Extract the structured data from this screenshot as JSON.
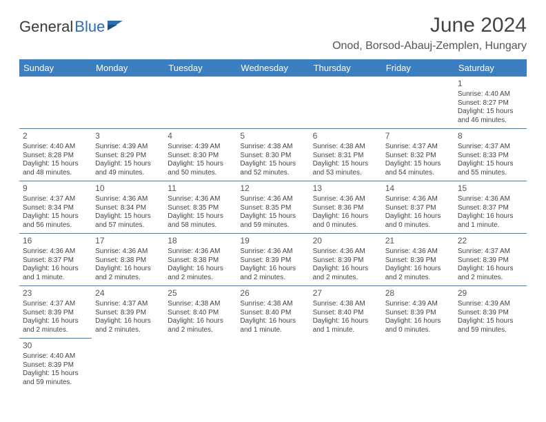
{
  "logo": {
    "part1": "General",
    "part2": "Blue"
  },
  "title": "June 2024",
  "location": "Onod, Borsod-Abauj-Zemplen, Hungary",
  "colors": {
    "header_bg": "#3c7fc1",
    "header_text": "#ffffff",
    "cell_border": "#3c7fc1",
    "logo_blue": "#2d6db3",
    "text": "#444444"
  },
  "typography": {
    "title_fontsize": 30,
    "location_fontsize": 16,
    "header_fontsize": 13,
    "daynum_fontsize": 12,
    "body_fontsize": 10
  },
  "weekdays": [
    "Sunday",
    "Monday",
    "Tuesday",
    "Wednesday",
    "Thursday",
    "Friday",
    "Saturday"
  ],
  "weeks": [
    [
      null,
      null,
      null,
      null,
      null,
      null,
      {
        "day": "1",
        "sunrise": "Sunrise: 4:40 AM",
        "sunset": "Sunset: 8:27 PM",
        "daylight1": "Daylight: 15 hours",
        "daylight2": "and 46 minutes."
      }
    ],
    [
      {
        "day": "2",
        "sunrise": "Sunrise: 4:40 AM",
        "sunset": "Sunset: 8:28 PM",
        "daylight1": "Daylight: 15 hours",
        "daylight2": "and 48 minutes."
      },
      {
        "day": "3",
        "sunrise": "Sunrise: 4:39 AM",
        "sunset": "Sunset: 8:29 PM",
        "daylight1": "Daylight: 15 hours",
        "daylight2": "and 49 minutes."
      },
      {
        "day": "4",
        "sunrise": "Sunrise: 4:39 AM",
        "sunset": "Sunset: 8:30 PM",
        "daylight1": "Daylight: 15 hours",
        "daylight2": "and 50 minutes."
      },
      {
        "day": "5",
        "sunrise": "Sunrise: 4:38 AM",
        "sunset": "Sunset: 8:30 PM",
        "daylight1": "Daylight: 15 hours",
        "daylight2": "and 52 minutes."
      },
      {
        "day": "6",
        "sunrise": "Sunrise: 4:38 AM",
        "sunset": "Sunset: 8:31 PM",
        "daylight1": "Daylight: 15 hours",
        "daylight2": "and 53 minutes."
      },
      {
        "day": "7",
        "sunrise": "Sunrise: 4:37 AM",
        "sunset": "Sunset: 8:32 PM",
        "daylight1": "Daylight: 15 hours",
        "daylight2": "and 54 minutes."
      },
      {
        "day": "8",
        "sunrise": "Sunrise: 4:37 AM",
        "sunset": "Sunset: 8:33 PM",
        "daylight1": "Daylight: 15 hours",
        "daylight2": "and 55 minutes."
      }
    ],
    [
      {
        "day": "9",
        "sunrise": "Sunrise: 4:37 AM",
        "sunset": "Sunset: 8:34 PM",
        "daylight1": "Daylight: 15 hours",
        "daylight2": "and 56 minutes."
      },
      {
        "day": "10",
        "sunrise": "Sunrise: 4:36 AM",
        "sunset": "Sunset: 8:34 PM",
        "daylight1": "Daylight: 15 hours",
        "daylight2": "and 57 minutes."
      },
      {
        "day": "11",
        "sunrise": "Sunrise: 4:36 AM",
        "sunset": "Sunset: 8:35 PM",
        "daylight1": "Daylight: 15 hours",
        "daylight2": "and 58 minutes."
      },
      {
        "day": "12",
        "sunrise": "Sunrise: 4:36 AM",
        "sunset": "Sunset: 8:35 PM",
        "daylight1": "Daylight: 15 hours",
        "daylight2": "and 59 minutes."
      },
      {
        "day": "13",
        "sunrise": "Sunrise: 4:36 AM",
        "sunset": "Sunset: 8:36 PM",
        "daylight1": "Daylight: 16 hours",
        "daylight2": "and 0 minutes."
      },
      {
        "day": "14",
        "sunrise": "Sunrise: 4:36 AM",
        "sunset": "Sunset: 8:37 PM",
        "daylight1": "Daylight: 16 hours",
        "daylight2": "and 0 minutes."
      },
      {
        "day": "15",
        "sunrise": "Sunrise: 4:36 AM",
        "sunset": "Sunset: 8:37 PM",
        "daylight1": "Daylight: 16 hours",
        "daylight2": "and 1 minute."
      }
    ],
    [
      {
        "day": "16",
        "sunrise": "Sunrise: 4:36 AM",
        "sunset": "Sunset: 8:37 PM",
        "daylight1": "Daylight: 16 hours",
        "daylight2": "and 1 minute."
      },
      {
        "day": "17",
        "sunrise": "Sunrise: 4:36 AM",
        "sunset": "Sunset: 8:38 PM",
        "daylight1": "Daylight: 16 hours",
        "daylight2": "and 2 minutes."
      },
      {
        "day": "18",
        "sunrise": "Sunrise: 4:36 AM",
        "sunset": "Sunset: 8:38 PM",
        "daylight1": "Daylight: 16 hours",
        "daylight2": "and 2 minutes."
      },
      {
        "day": "19",
        "sunrise": "Sunrise: 4:36 AM",
        "sunset": "Sunset: 8:39 PM",
        "daylight1": "Daylight: 16 hours",
        "daylight2": "and 2 minutes."
      },
      {
        "day": "20",
        "sunrise": "Sunrise: 4:36 AM",
        "sunset": "Sunset: 8:39 PM",
        "daylight1": "Daylight: 16 hours",
        "daylight2": "and 2 minutes."
      },
      {
        "day": "21",
        "sunrise": "Sunrise: 4:36 AM",
        "sunset": "Sunset: 8:39 PM",
        "daylight1": "Daylight: 16 hours",
        "daylight2": "and 2 minutes."
      },
      {
        "day": "22",
        "sunrise": "Sunrise: 4:37 AM",
        "sunset": "Sunset: 8:39 PM",
        "daylight1": "Daylight: 16 hours",
        "daylight2": "and 2 minutes."
      }
    ],
    [
      {
        "day": "23",
        "sunrise": "Sunrise: 4:37 AM",
        "sunset": "Sunset: 8:39 PM",
        "daylight1": "Daylight: 16 hours",
        "daylight2": "and 2 minutes."
      },
      {
        "day": "24",
        "sunrise": "Sunrise: 4:37 AM",
        "sunset": "Sunset: 8:39 PM",
        "daylight1": "Daylight: 16 hours",
        "daylight2": "and 2 minutes."
      },
      {
        "day": "25",
        "sunrise": "Sunrise: 4:38 AM",
        "sunset": "Sunset: 8:40 PM",
        "daylight1": "Daylight: 16 hours",
        "daylight2": "and 2 minutes."
      },
      {
        "day": "26",
        "sunrise": "Sunrise: 4:38 AM",
        "sunset": "Sunset: 8:40 PM",
        "daylight1": "Daylight: 16 hours",
        "daylight2": "and 1 minute."
      },
      {
        "day": "27",
        "sunrise": "Sunrise: 4:38 AM",
        "sunset": "Sunset: 8:40 PM",
        "daylight1": "Daylight: 16 hours",
        "daylight2": "and 1 minute."
      },
      {
        "day": "28",
        "sunrise": "Sunrise: 4:39 AM",
        "sunset": "Sunset: 8:39 PM",
        "daylight1": "Daylight: 16 hours",
        "daylight2": "and 0 minutes."
      },
      {
        "day": "29",
        "sunrise": "Sunrise: 4:39 AM",
        "sunset": "Sunset: 8:39 PM",
        "daylight1": "Daylight: 15 hours",
        "daylight2": "and 59 minutes."
      }
    ],
    [
      {
        "day": "30",
        "sunrise": "Sunrise: 4:40 AM",
        "sunset": "Sunset: 8:39 PM",
        "daylight1": "Daylight: 15 hours",
        "daylight2": "and 59 minutes."
      },
      null,
      null,
      null,
      null,
      null,
      null
    ]
  ]
}
